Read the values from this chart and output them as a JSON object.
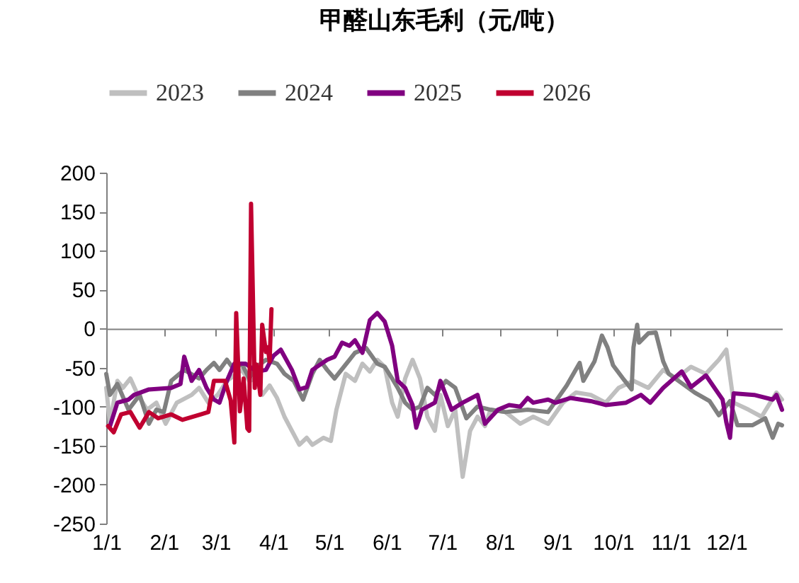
{
  "chart_data": {
    "type": "line",
    "title": "甲醛山东毛利（元/吨）",
    "legend": "top",
    "xlim": [
      "--01-01",
      "--12-31"
    ],
    "xticks": [
      {
        "value": "--01-01",
        "label": "1/1"
      },
      {
        "value": "--02-01",
        "label": "2/1"
      },
      {
        "value": "--03-01",
        "label": "3/1"
      },
      {
        "value": "--04-01",
        "label": "4/1"
      },
      {
        "value": "--05-01",
        "label": "5/1"
      },
      {
        "value": "--06-01",
        "label": "6/1"
      },
      {
        "value": "--07-01",
        "label": "7/1"
      },
      {
        "value": "--08-01",
        "label": "8/1"
      },
      {
        "value": "--09-01",
        "label": "9/1"
      },
      {
        "value": "--10-01",
        "label": "10/1"
      },
      {
        "value": "--11-01",
        "label": "11/1"
      },
      {
        "value": "--12-01",
        "label": "12/1"
      }
    ],
    "ylim": [
      -250,
      200
    ],
    "yticks": [
      -250,
      -200,
      -150,
      -100,
      -50,
      0,
      50,
      100,
      150,
      200
    ],
    "series": [
      {
        "name": "2023",
        "color": "#bfbfbf",
        "x": [
          "--01-01",
          "--01-03",
          "--01-07",
          "--01-10",
          "--01-14",
          "--01-18",
          "--01-23",
          "--01-28",
          "--02-02",
          "--02-08",
          "--02-16",
          "--02-20",
          "--02-25",
          "--03-02",
          "--03-07",
          "--03-15",
          "--03-19",
          "--03-23",
          "--03-26",
          "--03-30",
          "--04-03",
          "--04-07",
          "--04-11",
          "--04-15",
          "--04-19",
          "--04-22",
          "--04-28",
          "--05-02",
          "--05-05",
          "--05-10",
          "--05-15",
          "--05-19",
          "--05-23",
          "--05-27",
          "--05-31",
          "--06-04",
          "--06-07",
          "--06-11",
          "--06-15",
          "--06-19",
          "--06-23",
          "--06-27",
          "--06-30",
          "--07-04",
          "--07-08",
          "--07-12",
          "--07-16",
          "--07-20",
          "--07-24",
          "--07-27",
          "--08-04",
          "--08-12",
          "--08-19",
          "--08-27",
          "--09-04",
          "--09-11",
          "--09-19",
          "--09-27",
          "--10-04",
          "--10-12",
          "--10-20",
          "--10-28",
          "--11-04",
          "--11-12",
          "--11-20",
          "--11-27",
          "--12-01",
          "--12-05",
          "--12-13",
          "--12-20",
          "--12-28",
          "--12-31"
        ],
        "values": [
          -76,
          -122,
          -67,
          -76,
          -64,
          -85,
          -104,
          -95,
          -122,
          -95,
          -85,
          -76,
          -95,
          -85,
          -67,
          -53,
          -67,
          -64,
          -85,
          -73,
          -89,
          -113,
          -131,
          -149,
          -140,
          -149,
          -140,
          -144,
          -104,
          -58,
          -67,
          -45,
          -55,
          -40,
          -49,
          -95,
          -113,
          -64,
          -40,
          -64,
          -113,
          -131,
          -85,
          -125,
          -104,
          -190,
          -131,
          -113,
          -125,
          -104,
          -107,
          -122,
          -113,
          -122,
          -95,
          -82,
          -85,
          -95,
          -76,
          -67,
          -76,
          -53,
          -64,
          -49,
          -58,
          -40,
          -27,
          -95,
          -104,
          -113,
          -82,
          -91
        ]
      },
      {
        "name": "2024",
        "color": "#808080",
        "x": [
          "--01-01",
          "--01-03",
          "--01-07",
          "--01-13",
          "--01-19",
          "--01-24",
          "--01-28",
          "--02-01",
          "--02-05",
          "--02-12",
          "--02-20",
          "--02-24",
          "--02-28",
          "--03-03",
          "--03-07",
          "--03-11",
          "--03-15",
          "--03-19",
          "--03-23",
          "--03-28",
          "--04-03",
          "--04-07",
          "--04-12",
          "--04-17",
          "--04-22",
          "--04-26",
          "--04-30",
          "--05-04",
          "--05-12",
          "--05-15",
          "--05-21",
          "--05-27",
          "--05-31",
          "--06-04",
          "--06-07",
          "--06-11",
          "--06-15",
          "--06-19",
          "--06-23",
          "--06-27",
          "--07-03",
          "--07-08",
          "--07-14",
          "--07-20",
          "--07-27",
          "--08-04",
          "--08-16",
          "--08-27",
          "--09-06",
          "--09-13",
          "--09-15",
          "--09-21",
          "--09-25",
          "--09-28",
          "--10-01",
          "--10-07",
          "--10-11",
          "--10-12",
          "--10-14",
          "--10-15",
          "--10-20",
          "--10-24",
          "--10-28",
          "--10-31",
          "--11-07",
          "--11-14",
          "--11-22",
          "--11-27",
          "--12-03",
          "--12-07",
          "--12-15",
          "--12-22",
          "--12-26",
          "--12-29",
          "--12-31"
        ],
        "values": [
          -58,
          -85,
          -71,
          -104,
          -85,
          -122,
          -104,
          -107,
          -67,
          -53,
          -64,
          -53,
          -44,
          -53,
          -40,
          -53,
          -45,
          -64,
          -49,
          -40,
          -45,
          -58,
          -67,
          -91,
          -58,
          -40,
          -53,
          -64,
          -40,
          -31,
          -25,
          -45,
          -49,
          -64,
          -76,
          -95,
          -104,
          -100,
          -76,
          -85,
          -67,
          -76,
          -115,
          -100,
          -104,
          -107,
          -104,
          -107,
          -73,
          -44,
          -67,
          -42,
          -9,
          -24,
          -47,
          -66,
          -78,
          -24,
          5,
          -18,
          -6,
          -5,
          -42,
          -58,
          -70,
          -82,
          -93,
          -111,
          -93,
          -124,
          -124,
          -115,
          -140,
          -122,
          -124
        ]
      },
      {
        "name": "2025",
        "color": "#800080",
        "x": [
          "--01-03",
          "--01-07",
          "--01-13",
          "--01-16",
          "--01-24",
          "--02-05",
          "--02-10",
          "--02-12",
          "--02-16",
          "--02-20",
          "--02-24",
          "--02-28",
          "--03-03",
          "--03-07",
          "--03-11",
          "--03-17",
          "--03-23",
          "--03-28",
          "--04-01",
          "--04-05",
          "--04-11",
          "--04-15",
          "--04-19",
          "--04-22",
          "--04-30",
          "--05-04",
          "--05-08",
          "--05-12",
          "--05-15",
          "--05-19",
          "--05-23",
          "--05-27",
          "--05-31",
          "--06-04",
          "--06-07",
          "--06-11",
          "--06-15",
          "--06-17",
          "--06-20",
          "--06-27",
          "--06-30",
          "--07-06",
          "--07-12",
          "--07-20",
          "--07-24",
          "--07-31",
          "--08-06",
          "--08-12",
          "--08-16",
          "--08-19",
          "--08-27",
          "--08-31",
          "--09-08",
          "--09-19",
          "--09-27",
          "--10-08",
          "--10-16",
          "--10-21",
          "--10-28",
          "--11-07",
          "--11-12",
          "--11-20",
          "--11-29",
          "--12-01",
          "--12-03",
          "--12-05",
          "--12-16",
          "--12-26",
          "--12-28",
          "--12-31"
        ],
        "values": [
          -125,
          -95,
          -91,
          -85,
          -78,
          -76,
          -71,
          -36,
          -67,
          -53,
          -76,
          -91,
          -95,
          -67,
          -45,
          -45,
          -55,
          -53,
          -35,
          -27,
          -53,
          -78,
          -75,
          -53,
          -40,
          -36,
          -18,
          -22,
          -15,
          -31,
          11,
          20,
          9,
          -22,
          -67,
          -76,
          -98,
          -127,
          -104,
          -95,
          -67,
          -104,
          -95,
          -85,
          -122,
          -104,
          -98,
          -100,
          -89,
          -95,
          -91,
          -95,
          -89,
          -93,
          -98,
          -95,
          -85,
          -95,
          -76,
          -55,
          -75,
          -60,
          -91,
          -120,
          -140,
          -83,
          -85,
          -91,
          -85,
          -104
        ]
      },
      {
        "name": "2026",
        "color": "#c00030",
        "x": [
          "--01-02",
          "--01-05",
          "--01-09",
          "--01-14",
          "--01-19",
          "--01-24",
          "--01-29",
          "--02-05",
          "--02-11",
          "--02-21",
          "--02-25",
          "--02-28",
          "--03-06",
          "--03-09",
          "--03-11",
          "--03-12",
          "--03-14",
          "--03-16",
          "--03-18",
          "--03-19",
          "--03-20",
          "--03-22",
          "--03-23",
          "--03-25",
          "--03-26",
          "--03-28",
          "--03-29",
          "--03-30",
          "--03-31"
        ],
        "values": [
          -125,
          -133,
          -110,
          -107,
          -127,
          -107,
          -115,
          -110,
          -117,
          -110,
          -107,
          -67,
          -67,
          -92,
          -146,
          20,
          -106,
          -64,
          -128,
          -131,
          160,
          -76,
          -46,
          -85,
          5,
          -30,
          -24,
          -42,
          25
        ]
      }
    ]
  }
}
